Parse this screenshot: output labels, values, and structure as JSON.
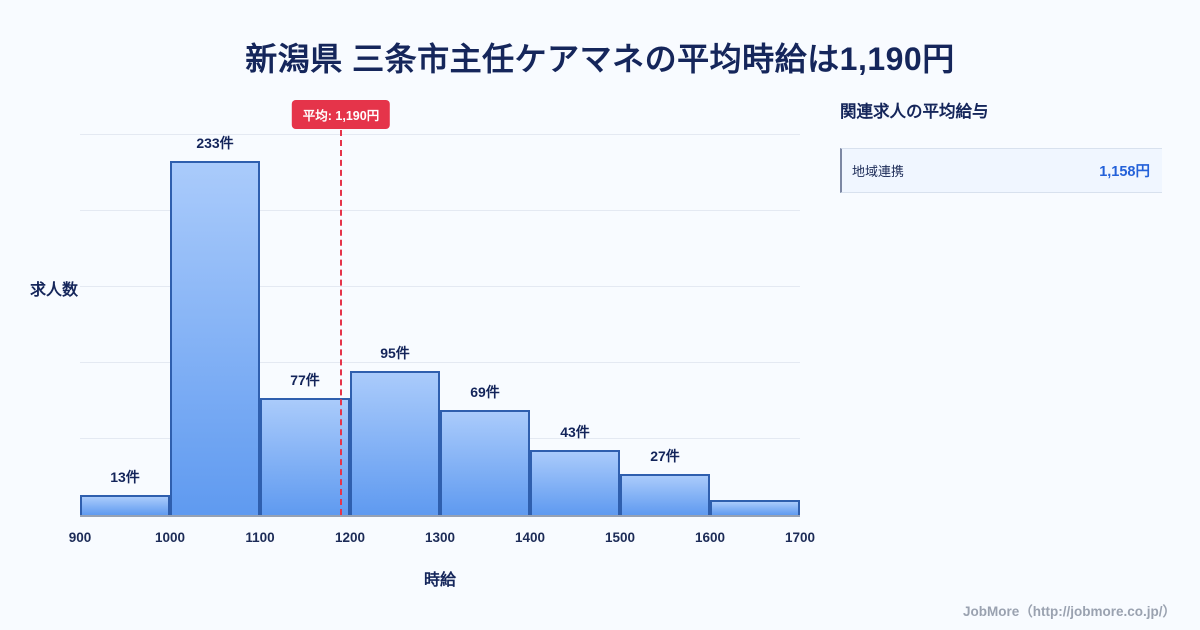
{
  "title": "新潟県 三条市主任ケアマネの平均時給は1,190円",
  "chart_data": {
    "type": "bar",
    "title": "新潟県 三条市主任ケアマネの平均時給は1,190円",
    "xlabel": "時給",
    "ylabel": "求人数",
    "bin_edges": [
      900,
      1000,
      1100,
      1200,
      1300,
      1400,
      1500,
      1600,
      1700
    ],
    "values": [
      13,
      233,
      77,
      95,
      69,
      43,
      27,
      10
    ],
    "labels": [
      "13件",
      "233件",
      "77件",
      "95件",
      "69件",
      "43件",
      "27件",
      ""
    ],
    "average_line": {
      "x": 1190,
      "label": "平均: 1,190円"
    },
    "ylim": [
      0,
      270
    ],
    "grid": true,
    "legend": "none",
    "bar_color_top": "#aacbfb",
    "bar_color_bottom": "#5f9af0",
    "bar_border_color": "#2f5fae",
    "average_color": "#e5344a"
  },
  "side_panel": {
    "heading": "関連求人の平均給与",
    "rows": [
      {
        "label": "地域連携",
        "value": "1,158円"
      }
    ]
  },
  "footer": "JobMore（http://jobmore.co.jp/）",
  "colors": {
    "background": "#f8fbff",
    "title_text": "#15265b",
    "value_blue": "#2461d9",
    "footer_gray": "#9aa2b0"
  }
}
